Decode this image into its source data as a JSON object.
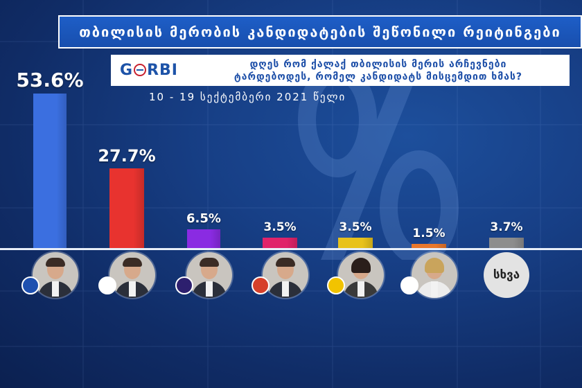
{
  "title": "თბილისის მერობის კანდიდატების შეწონილი რეიტინგები",
  "logo_text": "GORBI",
  "question_line1": "დღეს რომ ქალაქ თბილისის მერის არჩევნები",
  "question_line2": "ტარდებოდეს, რომელ კანდიდატს მისცემდით ხმას?",
  "date_range": "10 - 19 სექტემბერი 2021 წელი",
  "other_label": "სხვა",
  "colors": {
    "background": "#143a7e",
    "title_bar": "#1d5bc4",
    "baseline": "#e8eef8"
  },
  "chart_data": {
    "type": "bar",
    "categories": [
      "",
      "",
      "",
      "",
      "",
      "",
      "სხვა"
    ],
    "values": [
      53.6,
      27.7,
      6.5,
      3.5,
      3.5,
      1.5,
      3.7
    ],
    "value_labels": [
      "53.6%",
      "27.7%",
      "6.5%",
      "3.5%",
      "3.5%",
      "1.5%",
      "3.7%"
    ],
    "bar_colors": [
      "#3b6fe0",
      "#e8332f",
      "#8a2be2",
      "#e0236a",
      "#e8c21c",
      "#e8772b",
      "#8d8d8d"
    ],
    "party_logo_colors": [
      "#1e50b0",
      "#ffffff",
      "#2d1f6e",
      "#d6402a",
      "#f2c300",
      "#ffffff"
    ],
    "title": "თბილისის მერობის კანდიდატების შეწონილი რეიტინგები",
    "xlabel": "",
    "ylabel": "",
    "ylim": [
      0,
      60
    ],
    "grid": false,
    "legend": "none"
  }
}
